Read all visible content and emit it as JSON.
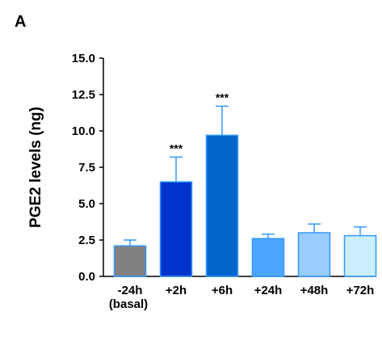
{
  "panel_label": "A",
  "chart_data": {
    "type": "bar",
    "categories": [
      "-24h",
      "+2h",
      "+6h",
      "+24h",
      "+48h",
      "+72h"
    ],
    "category_sublabels": [
      "(basal)",
      "",
      "",
      "",
      "",
      ""
    ],
    "values": [
      2.1,
      6.5,
      9.7,
      2.6,
      3.0,
      2.8
    ],
    "errors": [
      0.4,
      1.7,
      2.0,
      0.3,
      0.6,
      0.6
    ],
    "bar_colors": [
      "#808080",
      "#0033cc",
      "#0066cc",
      "#4da6ff",
      "#99ccff",
      "#cceeff"
    ],
    "error_color": "#3399ff",
    "annotations": [
      "",
      "***",
      "***",
      "",
      "",
      ""
    ],
    "ylabel": "PGE2 levels (ng)",
    "xlabel": "",
    "ylim": [
      0,
      15
    ],
    "yticks": [
      "0.0",
      "2.5",
      "5.0",
      "7.5",
      "10.0",
      "12.5",
      "15.0"
    ],
    "grid": false
  }
}
